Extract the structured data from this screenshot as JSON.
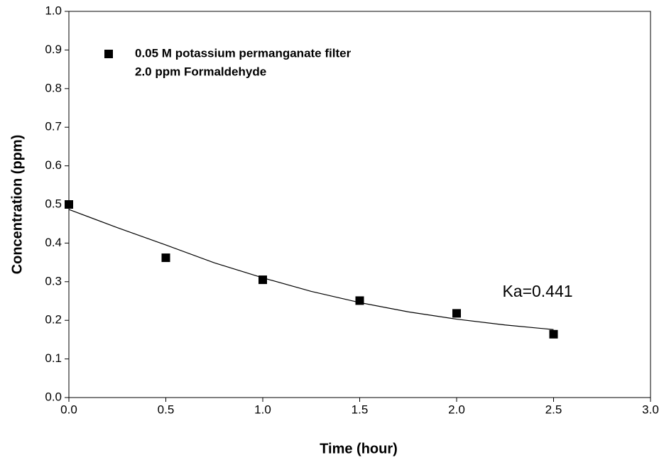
{
  "chart_data": {
    "type": "scatter",
    "x_label": "Time (hour)",
    "y_label": "Concentration (ppm)",
    "xlim": [
      0,
      3
    ],
    "ylim": [
      0,
      1
    ],
    "xticks": [
      {
        "value": 0,
        "label": "0.0"
      },
      {
        "value": 0.5,
        "label": "0.5"
      },
      {
        "value": 1,
        "label": "1.0"
      },
      {
        "value": 1.5,
        "label": "1.5"
      },
      {
        "value": 2,
        "label": "2.0"
      },
      {
        "value": 2.5,
        "label": "2.5"
      },
      {
        "value": 3,
        "label": "3.0"
      }
    ],
    "yticks": [
      {
        "value": 0,
        "label": "0.0"
      },
      {
        "value": 0.1,
        "label": "0.1"
      },
      {
        "value": 0.2,
        "label": "0.2"
      },
      {
        "value": 0.3,
        "label": "0.3"
      },
      {
        "value": 0.4,
        "label": "0.4"
      },
      {
        "value": 0.5,
        "label": "0.5"
      },
      {
        "value": 0.6,
        "label": "0.6"
      },
      {
        "value": 0.7,
        "label": "0.7"
      },
      {
        "value": 0.8,
        "label": "0.8"
      },
      {
        "value": 0.9,
        "label": "0.9"
      },
      {
        "value": 1,
        "label": "1.0"
      }
    ],
    "grid": false,
    "legend": "upper left",
    "legend_note": "2.0 ppm Formaldehyde",
    "annotation": "Ka=0.441",
    "series": [
      {
        "name": "0.05 M potassium permanganate filter",
        "color": "#000000",
        "marker": "square",
        "x": [
          0,
          0.5,
          1,
          1.5,
          2,
          2.5
        ],
        "values": [
          0.5,
          0.362,
          0.305,
          0.251,
          0.218,
          0.164
        ]
      },
      {
        "color": "#000000",
        "marker": "line",
        "x": [
          0,
          0.25,
          0.5,
          0.75,
          1,
          1.25,
          1.5,
          1.75,
          2,
          2.25,
          2.5
        ],
        "values": [
          0.487,
          0.44,
          0.395,
          0.349,
          0.31,
          0.275,
          0.246,
          0.222,
          0.203,
          0.188,
          0.176
        ]
      }
    ]
  }
}
